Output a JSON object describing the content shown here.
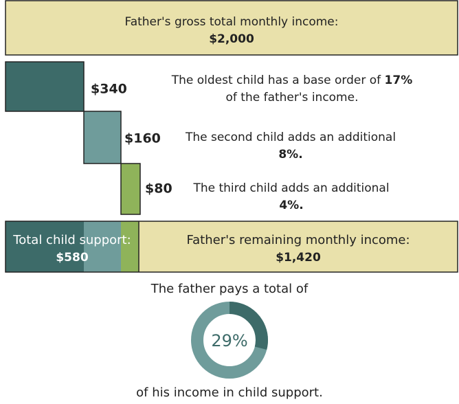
{
  "top": {
    "label": "Father's gross total monthly income:",
    "amount": "$2,000"
  },
  "children": [
    {
      "amount": "$340",
      "text": "The oldest child has a base order of",
      "percent": "17%",
      "text2": "of the father's income."
    },
    {
      "amount": "$160",
      "text": "The second child adds an additional",
      "percent": "8%."
    },
    {
      "amount": "$80",
      "text": "The third child adds an additional",
      "percent": "4%."
    }
  ],
  "total": {
    "label": "Total child support:",
    "amount": "$580"
  },
  "remaining": {
    "label": "Father's remaining monthly income:",
    "amount": "$1,420"
  },
  "summary": {
    "before": "The father pays a total of",
    "percent": "29%",
    "after": "of his income in child support."
  }
}
